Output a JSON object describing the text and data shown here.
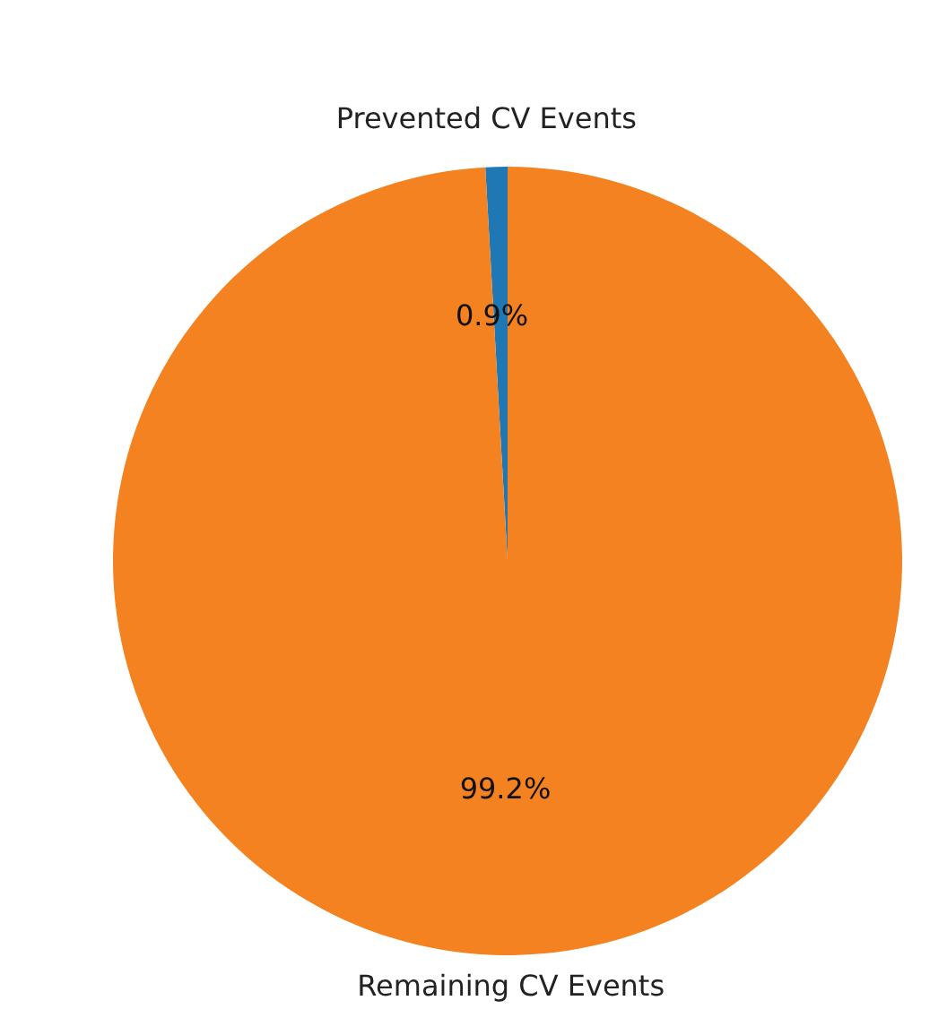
{
  "chart_data": {
    "type": "pie",
    "categories": [
      "Prevented CV Events",
      "Remaining CV Events"
    ],
    "values": [
      0.9,
      99.2
    ],
    "colors": [
      "#1f77b4",
      "#f58220"
    ],
    "value_labels": [
      "0.9%",
      "99.2%"
    ]
  }
}
